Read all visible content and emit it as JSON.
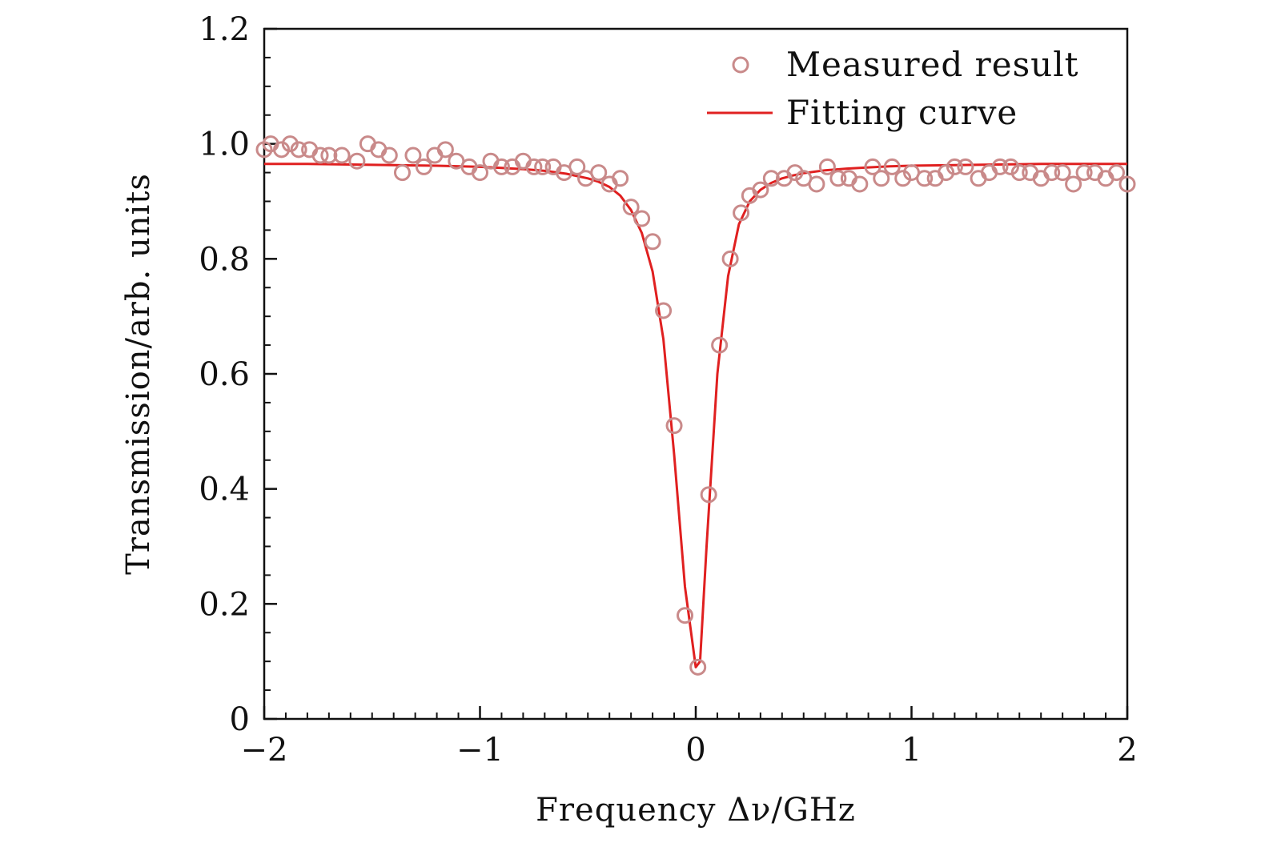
{
  "chart_data": {
    "type": "scatter",
    "title": "",
    "xlabel": "Frequency Δν/GHz",
    "ylabel": "Transmission/arb. units",
    "xlim": [
      -2,
      2
    ],
    "ylim": [
      0,
      1.2
    ],
    "x_ticks": [
      -2,
      -1,
      0,
      1,
      2
    ],
    "x_tick_labels": [
      "−2",
      "−1",
      "0",
      "1",
      "2"
    ],
    "y_ticks": [
      0,
      0.2,
      0.4,
      0.6,
      0.8,
      1.0,
      1.2
    ],
    "y_tick_labels": [
      "0",
      "0.2",
      "0.4",
      "0.6",
      "0.8",
      "1.0",
      "1.2"
    ],
    "grid": false,
    "legend_position": "top-right",
    "series": [
      {
        "name": "Measured result",
        "style": "open-circle",
        "color": "#c98a8a",
        "x": [
          -2.0,
          -1.97,
          -1.92,
          -1.88,
          -1.84,
          -1.79,
          -1.74,
          -1.7,
          -1.64,
          -1.57,
          -1.52,
          -1.47,
          -1.42,
          -1.36,
          -1.31,
          -1.26,
          -1.21,
          -1.16,
          -1.11,
          -1.05,
          -1.0,
          -0.95,
          -0.9,
          -0.85,
          -0.8,
          -0.75,
          -0.71,
          -0.66,
          -0.61,
          -0.55,
          -0.51,
          -0.45,
          -0.4,
          -0.35,
          -0.3,
          -0.25,
          -0.2,
          -0.15,
          -0.1,
          -0.05,
          0.01,
          0.06,
          0.11,
          0.16,
          0.21,
          0.25,
          0.3,
          0.35,
          0.41,
          0.46,
          0.5,
          0.56,
          0.61,
          0.66,
          0.71,
          0.76,
          0.82,
          0.86,
          0.91,
          0.96,
          1.0,
          1.06,
          1.11,
          1.16,
          1.2,
          1.25,
          1.31,
          1.36,
          1.41,
          1.46,
          1.5,
          1.55,
          1.6,
          1.65,
          1.7,
          1.75,
          1.8,
          1.85,
          1.9,
          1.95,
          2.0
        ],
        "y": [
          0.99,
          1.0,
          0.99,
          1.0,
          0.99,
          0.99,
          0.98,
          0.98,
          0.98,
          0.97,
          1.0,
          0.99,
          0.98,
          0.95,
          0.98,
          0.96,
          0.98,
          0.99,
          0.97,
          0.96,
          0.95,
          0.97,
          0.96,
          0.96,
          0.97,
          0.96,
          0.96,
          0.96,
          0.95,
          0.96,
          0.94,
          0.95,
          0.93,
          0.94,
          0.89,
          0.87,
          0.83,
          0.71,
          0.51,
          0.18,
          0.09,
          0.39,
          0.65,
          0.8,
          0.88,
          0.91,
          0.92,
          0.94,
          0.94,
          0.95,
          0.94,
          0.93,
          0.96,
          0.94,
          0.94,
          0.93,
          0.96,
          0.94,
          0.96,
          0.94,
          0.95,
          0.94,
          0.94,
          0.95,
          0.96,
          0.96,
          0.94,
          0.95,
          0.96,
          0.96,
          0.95,
          0.95,
          0.94,
          0.95,
          0.95,
          0.93,
          0.95,
          0.95,
          0.94,
          0.95,
          0.93
        ]
      },
      {
        "name": "Fitting curve",
        "style": "line",
        "color": "#e02020",
        "x": [
          -2.0,
          -1.8,
          -1.6,
          -1.4,
          -1.2,
          -1.0,
          -0.9,
          -0.8,
          -0.7,
          -0.6,
          -0.5,
          -0.45,
          -0.4,
          -0.35,
          -0.3,
          -0.25,
          -0.2,
          -0.15,
          -0.1,
          -0.05,
          0.0,
          0.02,
          0.05,
          0.1,
          0.15,
          0.2,
          0.25,
          0.3,
          0.35,
          0.4,
          0.45,
          0.5,
          0.6,
          0.7,
          0.8,
          0.9,
          1.0,
          1.2,
          1.4,
          1.6,
          1.8,
          2.0
        ],
        "y": [
          0.965,
          0.965,
          0.964,
          0.963,
          0.962,
          0.96,
          0.958,
          0.956,
          0.953,
          0.948,
          0.94,
          0.934,
          0.925,
          0.91,
          0.885,
          0.845,
          0.778,
          0.66,
          0.46,
          0.23,
          0.09,
          0.1,
          0.3,
          0.6,
          0.77,
          0.86,
          0.9,
          0.92,
          0.932,
          0.94,
          0.945,
          0.949,
          0.954,
          0.957,
          0.959,
          0.961,
          0.962,
          0.963,
          0.964,
          0.965,
          0.965,
          0.965
        ]
      }
    ]
  }
}
